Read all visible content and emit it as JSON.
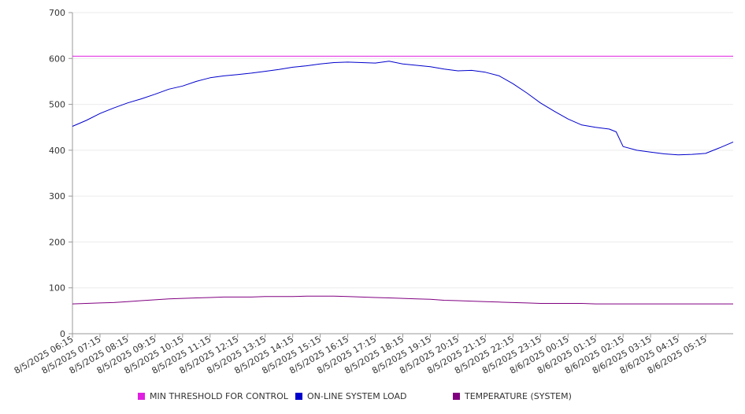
{
  "chart_data": {
    "type": "line",
    "ylim": [
      0,
      700
    ],
    "yticks": [
      0,
      100,
      200,
      300,
      400,
      500,
      600,
      700
    ],
    "xtick_labels": [
      "8/5/2025 06:15",
      "8/5/2025 07:15",
      "8/5/2025 08:15",
      "8/5/2025 09:15",
      "8/5/2025 10:15",
      "8/5/2025 11:15",
      "8/5/2025 12:15",
      "8/5/2025 13:15",
      "8/5/2025 14:15",
      "8/5/2025 15:15",
      "8/5/2025 16:15",
      "8/5/2025 17:15",
      "8/5/2025 18:15",
      "8/5/2025 19:15",
      "8/5/2025 20:15",
      "8/5/2025 21:15",
      "8/5/2025 22:15",
      "8/5/2025 23:15",
      "8/6/2025 00:15",
      "8/6/2025 01:15",
      "8/6/2025 02:15",
      "8/6/2025 03:15",
      "8/6/2025 04:15",
      "8/6/2025 05:15"
    ],
    "x_hours": [
      6.25,
      6.75,
      7.25,
      7.75,
      8.25,
      8.75,
      9.25,
      9.75,
      10.25,
      10.75,
      11.25,
      11.75,
      12.25,
      12.75,
      13.25,
      13.75,
      14.25,
      14.75,
      15.25,
      15.75,
      16.25,
      16.75,
      17.25,
      17.75,
      18.25,
      18.75,
      19.25,
      19.75,
      20.25,
      20.75,
      21.25,
      21.75,
      22.25,
      22.75,
      23.25,
      23.75,
      24.25,
      24.75,
      25.25,
      25.75,
      26.0,
      26.25,
      26.75,
      27.25,
      27.75,
      28.25,
      28.75,
      29.25,
      29.75,
      30.25
    ],
    "series": [
      {
        "name": "MIN THRESHOLD FOR CONTROL",
        "color": "#E020E0",
        "values": [
          605,
          605,
          605,
          605,
          605,
          605,
          605,
          605,
          605,
          605,
          605,
          605,
          605,
          605,
          605,
          605,
          605,
          605,
          605,
          605,
          605,
          605,
          605,
          605,
          605,
          605,
          605,
          605,
          605,
          605,
          605,
          605,
          605,
          605,
          605,
          605,
          605,
          605,
          605,
          605,
          605,
          605,
          605,
          605,
          605,
          605,
          605,
          605,
          605,
          605
        ]
      },
      {
        "name": "ON-LINE SYSTEM LOAD",
        "color": "#0000CC",
        "values": [
          452,
          465,
          480,
          492,
          503,
          512,
          522,
          533,
          540,
          550,
          558,
          562,
          565,
          568,
          572,
          576,
          581,
          584,
          588,
          591,
          592,
          591,
          590,
          594,
          588,
          585,
          582,
          577,
          573,
          574,
          570,
          562,
          545,
          525,
          503,
          485,
          468,
          455,
          450,
          446,
          440,
          408,
          400,
          396,
          392,
          390,
          391,
          393,
          405,
          418
        ]
      },
      {
        "name": "TEMPERATURE (SYSTEM)",
        "color": "#800080",
        "values": [
          65,
          66,
          67,
          68,
          70,
          72,
          74,
          76,
          77,
          78,
          79,
          80,
          80,
          80,
          81,
          81,
          81,
          82,
          82,
          82,
          81,
          80,
          79,
          78,
          77,
          76,
          75,
          73,
          72,
          71,
          70,
          69,
          68,
          67,
          66,
          66,
          66,
          66,
          65,
          65,
          65,
          65,
          65,
          65,
          65,
          65,
          65,
          65,
          65,
          65
        ]
      }
    ],
    "legend_position": "bottom",
    "grid": true
  }
}
